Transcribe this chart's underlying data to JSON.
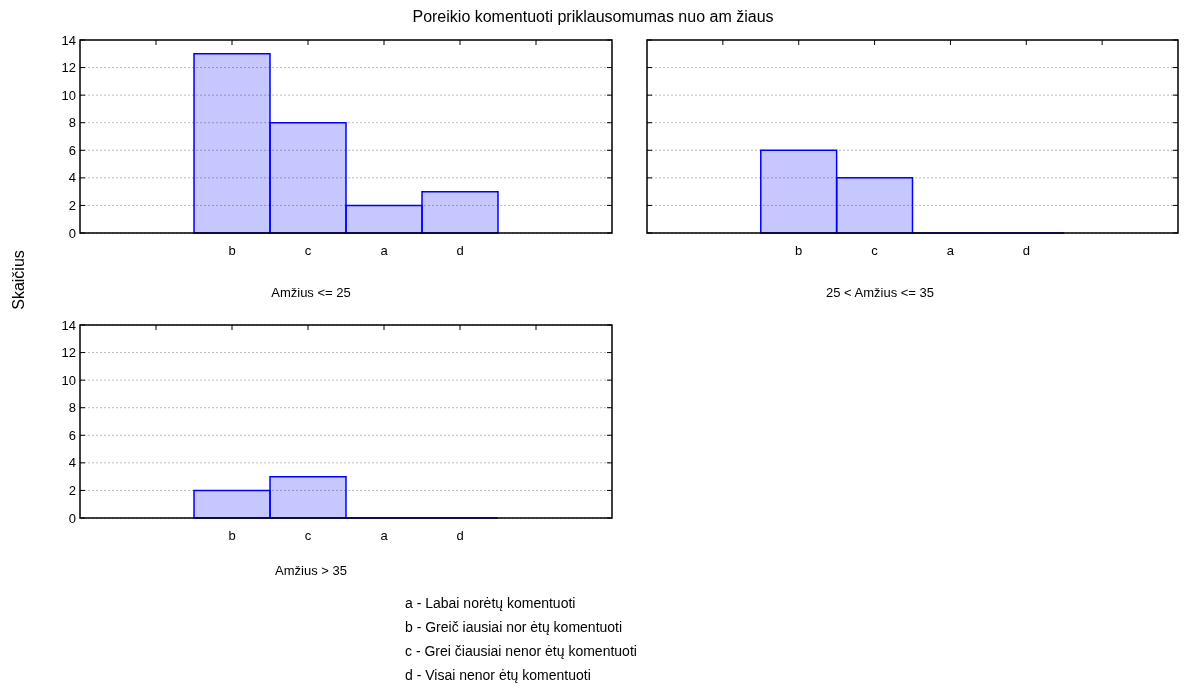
{
  "chart_data": [
    {
      "type": "bar",
      "title": "Poreikio komentuoti priklausomumas nuo am žiaus",
      "ylabel": "Skaičius",
      "xlabel": "Amžius <= 25",
      "categories": [
        null,
        "b",
        "c",
        "a",
        "d",
        null
      ],
      "series": [
        {
          "color": "#0000ff",
          "values": [
            null,
            13,
            8,
            2,
            3,
            null
          ]
        }
      ],
      "ylim": [
        0,
        14
      ],
      "yticks": [
        0,
        2,
        4,
        6,
        8,
        10,
        12,
        14
      ],
      "grid": "y",
      "annotations": [
        "a - Labai norėtų komentuoti",
        "b - Greič iausiai nor ėtų komentuoti",
        "c - Grei čiausiai nenor ėtų komentuoti",
        "d - Visai nenor ėtų komentuoti"
      ]
    },
    {
      "type": "bar",
      "xlabel": "25 < Amžius <= 35",
      "categories": [
        null,
        "b",
        "c",
        "a",
        "d",
        null
      ],
      "series": [
        {
          "color": "#0000ff",
          "values": [
            null,
            6,
            4,
            0,
            0,
            null
          ]
        }
      ],
      "ylim": [
        0,
        14
      ],
      "yticks": [
        0,
        2,
        4,
        6,
        8,
        10,
        12,
        14
      ],
      "grid": "y",
      "tick_labels": "x"
    },
    {
      "type": "bar",
      "xlabel": "Amžius > 35",
      "categories": [
        null,
        "b",
        "c",
        "a",
        "d",
        null
      ],
      "series": [
        {
          "color": "#0000ff",
          "values": [
            null,
            2,
            3,
            0,
            0,
            null
          ]
        }
      ],
      "ylim": [
        0,
        14
      ],
      "yticks": [
        0,
        2,
        4,
        6,
        8,
        10,
        12,
        14
      ],
      "grid": "y"
    }
  ]
}
